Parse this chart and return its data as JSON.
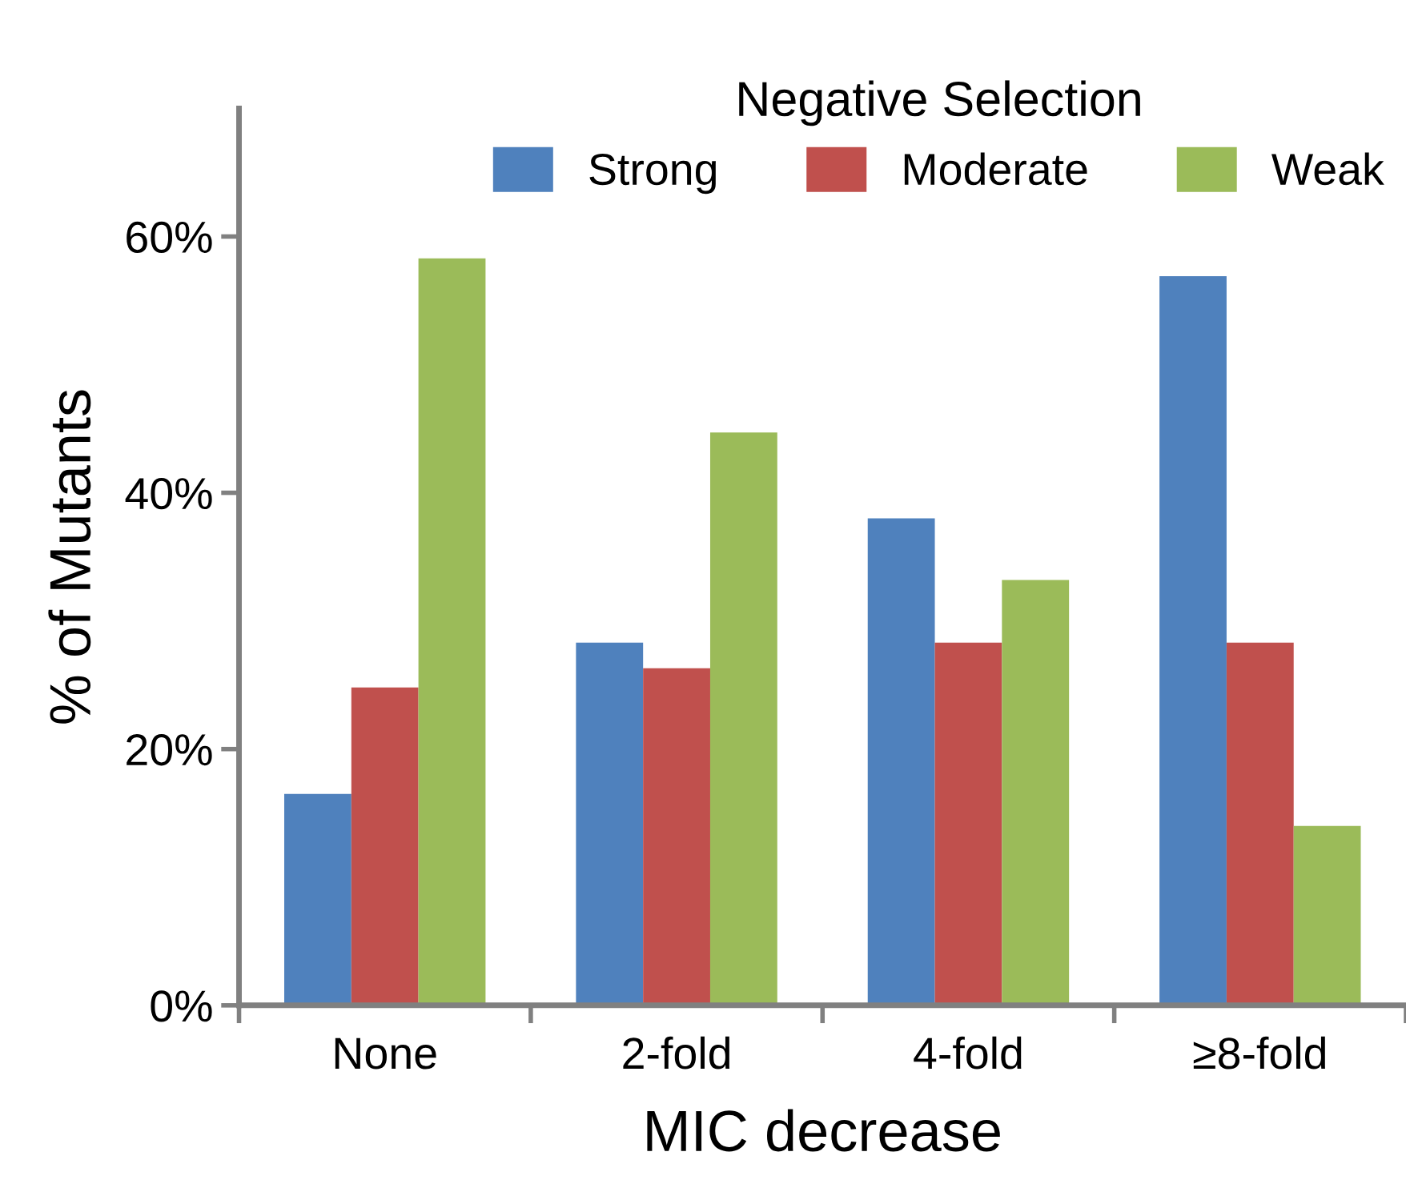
{
  "chart_data": {
    "type": "bar",
    "xlabel": "MIC decrease",
    "ylabel": "% of Mutants",
    "legend_title": "Negative Selection",
    "categories": [
      "None",
      "2-fold",
      "4-fold",
      "≥8-fold"
    ],
    "series": [
      {
        "name": "Strong",
        "color": "#4f81bd",
        "values": [
          16.5,
          28.3,
          38.0,
          56.9
        ]
      },
      {
        "name": "Moderate",
        "color": "#c0504d",
        "values": [
          24.8,
          26.3,
          28.3,
          28.3
        ]
      },
      {
        "name": "Weak",
        "color": "#9bbb59",
        "values": [
          58.3,
          44.7,
          33.2,
          14.0
        ]
      }
    ],
    "ylim": [
      0,
      70
    ],
    "yticks": [
      {
        "value": 0,
        "label": "0%"
      },
      {
        "value": 20,
        "label": "20%"
      },
      {
        "value": 40,
        "label": "40%"
      },
      {
        "value": 60,
        "label": "60%"
      }
    ],
    "grid": false,
    "legend": "top"
  }
}
